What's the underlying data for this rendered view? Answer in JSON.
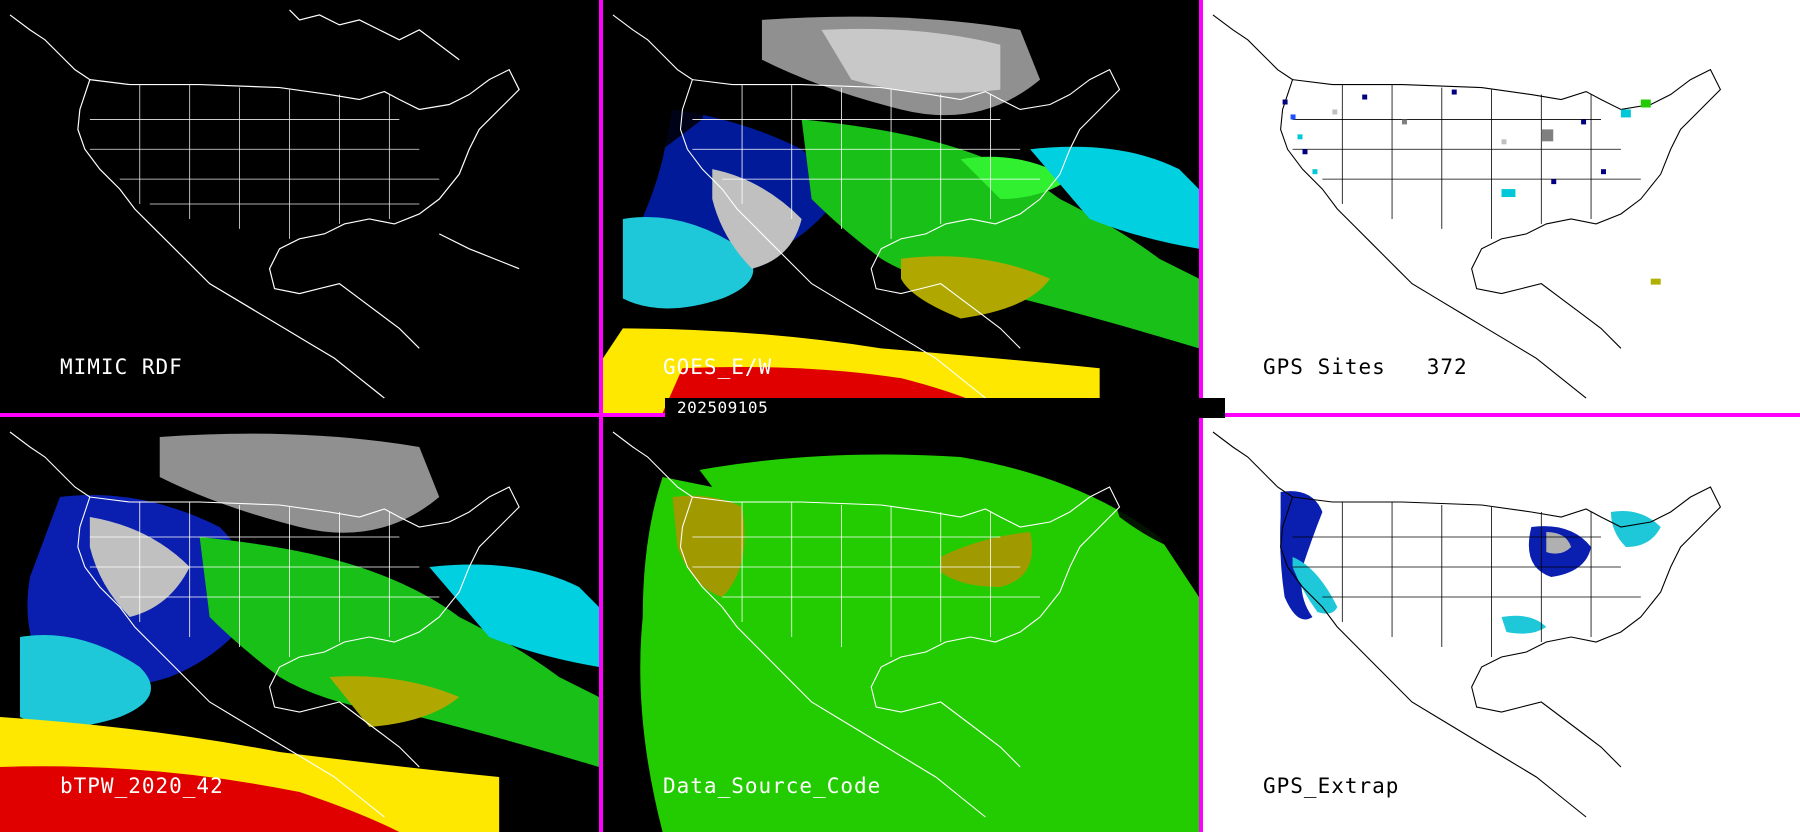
{
  "timestamp": "202509105",
  "panels": [
    {
      "id": "p1",
      "label": "MIMIC RDF",
      "style": "map-outline-dark"
    },
    {
      "id": "p2",
      "label": "GOES_E/W",
      "style": "tpw-field"
    },
    {
      "id": "p3",
      "label": "GPS Sites   372",
      "style": "gps-sites"
    },
    {
      "id": "p4",
      "label": "bTPW_2020_42",
      "style": "tpw-field"
    },
    {
      "id": "p5",
      "label": "Data_Source_Code",
      "style": "source-code"
    },
    {
      "id": "p6",
      "label": "GPS_Extrap",
      "style": "gps-extrap"
    }
  ],
  "colors": {
    "separator": "#ff00ff",
    "coastline_dark_bg": "#ffffff",
    "coastline_light_bg": "#000000",
    "tpw_palette": [
      "#808080",
      "#c0c0c0",
      "#000090",
      "#1e50ff",
      "#00c8d8",
      "#60ffff",
      "#00d000",
      "#40ff40",
      "#b0b000",
      "#ffff00",
      "#ff0000",
      "#b00000"
    ],
    "source_code_palette": [
      "#22cc00",
      "#a09a00"
    ]
  }
}
